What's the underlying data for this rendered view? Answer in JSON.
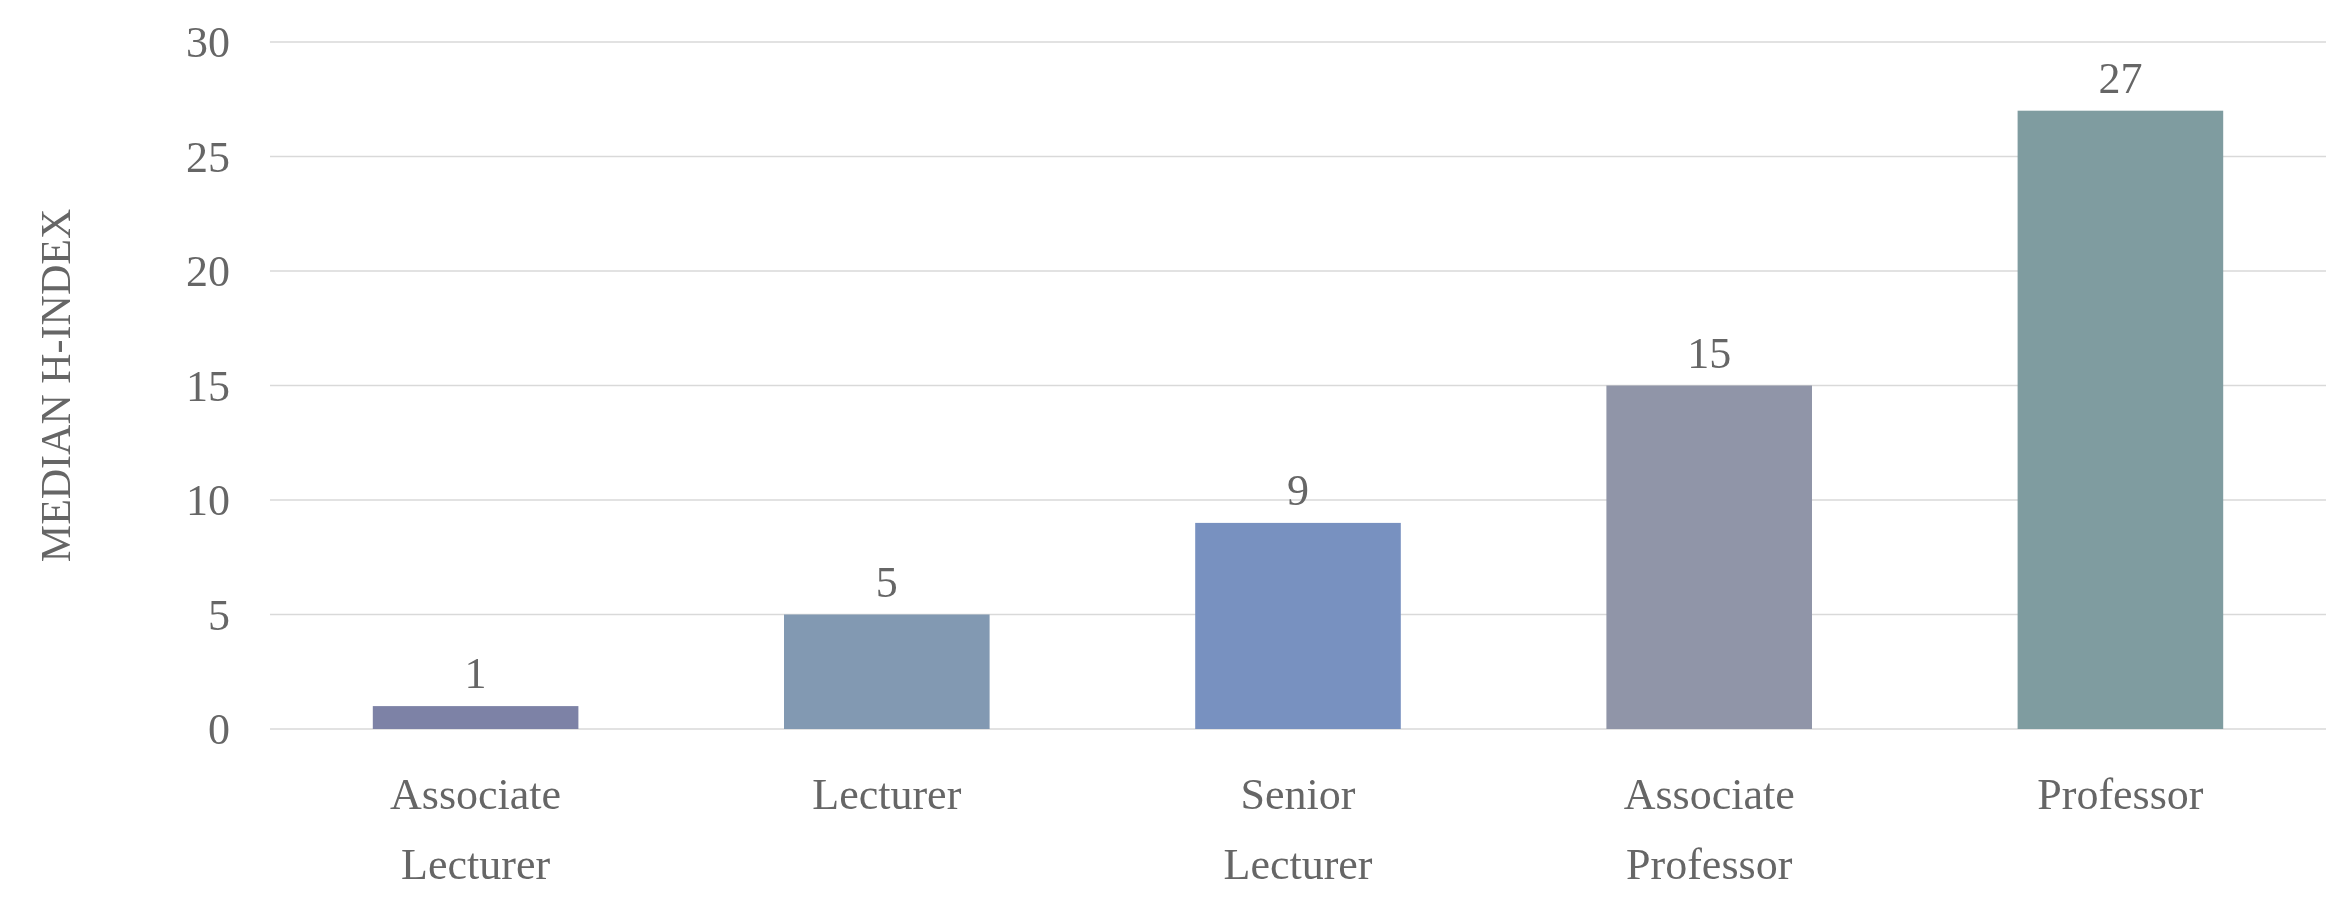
{
  "chart_data": {
    "type": "bar",
    "ylabel": "MEDIAN H-INDEX",
    "categories": [
      "Associate Lecturer",
      "Lecturer",
      "Senior Lecturer",
      "Associate Professor",
      "Professor"
    ],
    "values": [
      1,
      5,
      9,
      15,
      27
    ],
    "colors": [
      "#7d82a6",
      "#8299b2",
      "#7891c0",
      "#9095a8",
      "#7f9ca0"
    ],
    "ylim": [
      0,
      30
    ],
    "yticks": [
      0,
      5,
      10,
      15,
      20,
      25,
      30
    ],
    "grid": "y",
    "data_labels": true
  }
}
